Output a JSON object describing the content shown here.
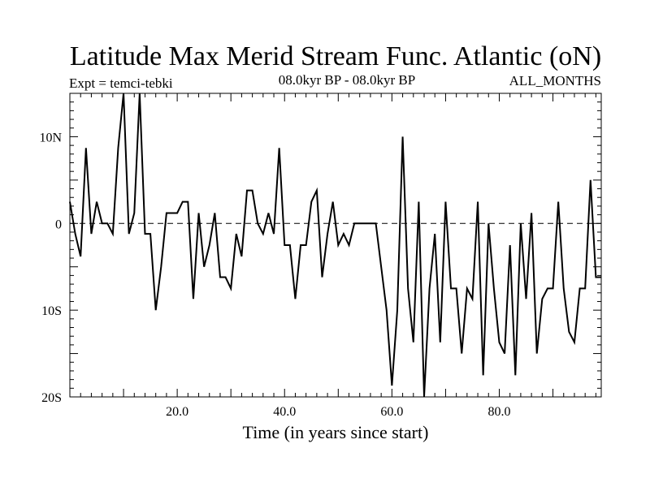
{
  "chart_data": {
    "type": "line",
    "title": "Latitude Max Merid Stream Func. Atlantic (oN)",
    "left_label": "Expt = temci-tebki",
    "center_label": "08.0kyr BP - 08.0kyr BP",
    "right_label": "ALL_MONTHS",
    "xlabel": "Time (in years since start)",
    "ylabel": "",
    "xlim": [
      0,
      99
    ],
    "ylim": [
      -20,
      15
    ],
    "xticks": [
      {
        "value": 20,
        "label": "20.0"
      },
      {
        "value": 40,
        "label": "40.0"
      },
      {
        "value": 60,
        "label": "60.0"
      },
      {
        "value": 80,
        "label": "80.0"
      }
    ],
    "yticks": [
      {
        "value": 10,
        "label": "10N"
      },
      {
        "value": 0,
        "label": "0"
      },
      {
        "value": -10,
        "label": "10S"
      },
      {
        "value": -20,
        "label": "20S"
      }
    ],
    "zero_line": true,
    "series": [
      {
        "name": "Latitude Max Merid Stream Func",
        "x": [
          0,
          1,
          2,
          3,
          4,
          5,
          6,
          7,
          8,
          9,
          10,
          11,
          12,
          13,
          14,
          15,
          16,
          17,
          18,
          19,
          20,
          21,
          22,
          23,
          24,
          25,
          26,
          27,
          28,
          29,
          30,
          31,
          32,
          33,
          34,
          35,
          36,
          37,
          38,
          39,
          40,
          41,
          42,
          43,
          44,
          45,
          46,
          47,
          48,
          49,
          50,
          51,
          52,
          53,
          54,
          55,
          56,
          57,
          58,
          59,
          60,
          61,
          62,
          63,
          64,
          65,
          66,
          67,
          68,
          69,
          70,
          71,
          72,
          73,
          74,
          75,
          76,
          77,
          78,
          79,
          80,
          81,
          82,
          83,
          84,
          85,
          86,
          87,
          88,
          89,
          90,
          91,
          92,
          93,
          94,
          95,
          96,
          97,
          98,
          99
        ],
        "values": [
          2.5,
          -1.2,
          -3.8,
          8.7,
          -1.2,
          2.5,
          0,
          0,
          -1.2,
          8.7,
          15,
          -1.2,
          1.2,
          15,
          -1.2,
          -1.2,
          -10,
          -5,
          1.2,
          1.2,
          1.2,
          2.5,
          2.5,
          -8.7,
          1.2,
          -5,
          -2.5,
          1.2,
          -6.2,
          -6.2,
          -7.5,
          -1.2,
          -3.8,
          3.8,
          3.8,
          0,
          -1.2,
          1.2,
          -1.2,
          8.7,
          -2.5,
          -2.5,
          -8.7,
          -2.5,
          -2.5,
          2.5,
          3.8,
          -6.2,
          -1.2,
          2.5,
          -2.5,
          -1.2,
          -2.5,
          0,
          0,
          0,
          0,
          0,
          -5,
          -10,
          -18.7,
          -10,
          10,
          -7.5,
          -13.7,
          2.5,
          -20,
          -7.5,
          -1.2,
          -13.7,
          2.5,
          -7.5,
          -7.5,
          -15,
          -7.5,
          -8.7,
          2.5,
          -17.5,
          0,
          -7.5,
          -13.7,
          -15,
          -2.5,
          -17.5,
          0,
          -8.7,
          1.2,
          -15,
          -8.7,
          -7.5,
          -7.5,
          2.5,
          -7.5,
          -12.5,
          -13.7,
          -7.5,
          -7.5,
          5,
          -6.2,
          -6.2
        ]
      }
    ]
  }
}
